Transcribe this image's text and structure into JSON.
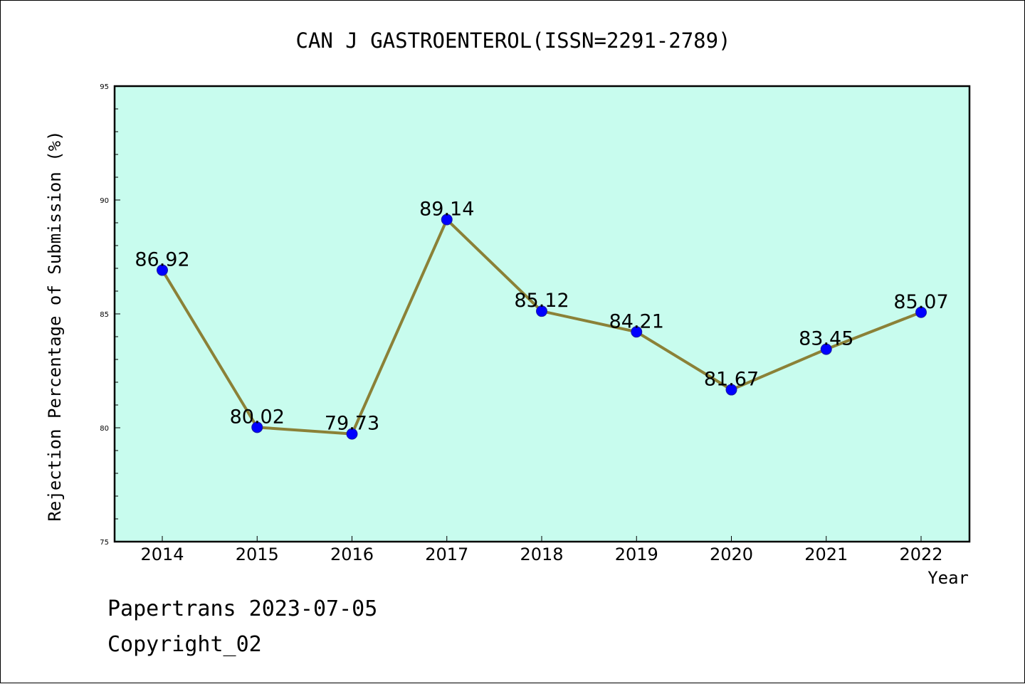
{
  "footer": {
    "line1": "Papertrans 2023-07-05",
    "line2": "Copyright_02"
  },
  "colors": {
    "plot_background": "#c8fcee",
    "line": "#8b8137",
    "marker": "#0000ff"
  },
  "chart_data": {
    "type": "line",
    "title": "CAN J GASTROENTEROL(ISSN=2291-2789)",
    "xlabel": "Year",
    "ylabel": "Rejection Percentage of Submission (%)",
    "categories": [
      "2014",
      "2015",
      "2016",
      "2017",
      "2018",
      "2019",
      "2020",
      "2021",
      "2022"
    ],
    "series": [
      {
        "values": [
          86.92,
          80.02,
          79.73,
          89.14,
          85.12,
          84.21,
          81.67,
          83.45,
          85.07
        ],
        "labels": [
          "86.92",
          "80.02",
          "79.73",
          "89.14",
          "85.12",
          "84.21",
          "81.67",
          "83.45",
          "85.07"
        ]
      }
    ],
    "ylim": [
      75,
      95
    ],
    "yticks": [
      "75",
      "80",
      "85",
      "90",
      "95"
    ],
    "grid": false,
    "legend": "none"
  }
}
